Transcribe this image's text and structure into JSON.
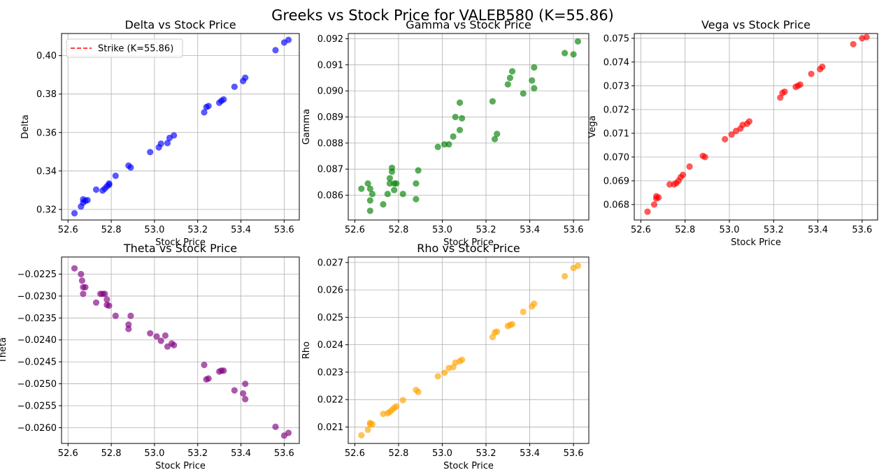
{
  "figure": {
    "title": "Greeks vs Stock Price for VALEB580 (K=55.86)"
  },
  "chart_data": [
    {
      "id": "delta",
      "type": "scatter",
      "title": "Delta vs Stock Price",
      "xlabel": "Stock Price",
      "ylabel": "Delta",
      "xlim": [
        52.57,
        53.67
      ],
      "ylim": [
        0.3145,
        0.4115
      ],
      "xticks": [
        52.6,
        52.8,
        53.0,
        53.2,
        53.4,
        53.6
      ],
      "xtick_labels": [
        "52.6",
        "52.8",
        "53.0",
        "53.2",
        "53.4",
        "53.6"
      ],
      "yticks": [
        0.32,
        0.34,
        0.36,
        0.38,
        0.4
      ],
      "ytick_labels": [
        "0.32",
        "0.34",
        "0.36",
        "0.38",
        "0.40"
      ],
      "grid": true,
      "color": "#0000ff",
      "legend": {
        "position": "upper-left",
        "entries": [
          {
            "label": "Strike (K=55.86)",
            "style": "dashed",
            "color": "#ff0000"
          }
        ]
      },
      "x": [
        52.63,
        52.66,
        52.67,
        52.67,
        52.68,
        52.69,
        52.73,
        52.76,
        52.77,
        52.78,
        52.79,
        52.79,
        52.82,
        52.88,
        52.89,
        52.98,
        53.02,
        53.03,
        53.06,
        53.07,
        53.09,
        53.23,
        53.24,
        53.25,
        53.3,
        53.31,
        53.32,
        53.37,
        53.41,
        53.42,
        53.56,
        53.6,
        53.62
      ],
      "y": [
        0.318,
        0.3215,
        0.3235,
        0.3252,
        0.3245,
        0.3248,
        0.3303,
        0.3298,
        0.3308,
        0.332,
        0.3335,
        0.3328,
        0.3375,
        0.3428,
        0.3418,
        0.3498,
        0.3523,
        0.3542,
        0.3545,
        0.3572,
        0.3585,
        0.3705,
        0.3732,
        0.3738,
        0.3755,
        0.3765,
        0.3772,
        0.3838,
        0.3868,
        0.3885,
        0.4028,
        0.4068,
        0.4082
      ]
    },
    {
      "id": "gamma",
      "type": "scatter",
      "title": "Gamma vs Stock Price",
      "xlabel": "Stock Price",
      "ylabel": "Gamma",
      "xlim": [
        52.57,
        53.67
      ],
      "ylim": [
        0.08505,
        0.0922
      ],
      "xticks": [
        52.6,
        52.8,
        53.0,
        53.2,
        53.4,
        53.6
      ],
      "xtick_labels": [
        "52.6",
        "52.8",
        "53.0",
        "53.2",
        "53.4",
        "53.6"
      ],
      "yticks": [
        0.086,
        0.087,
        0.088,
        0.089,
        0.09,
        0.091,
        0.092
      ],
      "ytick_labels": [
        "0.086",
        "0.087",
        "0.088",
        "0.089",
        "0.090",
        "0.091",
        "0.092"
      ],
      "grid": true,
      "color": "#008000",
      "x": [
        52.63,
        52.66,
        52.67,
        52.67,
        52.67,
        52.68,
        52.73,
        52.75,
        52.76,
        52.76,
        52.77,
        52.77,
        52.78,
        52.78,
        52.79,
        52.82,
        52.88,
        52.88,
        52.89,
        52.98,
        53.01,
        53.03,
        53.05,
        53.06,
        53.08,
        53.08,
        53.09,
        53.23,
        53.24,
        53.25,
        53.3,
        53.31,
        53.32,
        53.37,
        53.41,
        53.42,
        53.42,
        53.56,
        53.6,
        53.62
      ],
      "y": [
        0.08625,
        0.08645,
        0.08625,
        0.0854,
        0.0858,
        0.08605,
        0.08565,
        0.08605,
        0.08645,
        0.08665,
        0.0869,
        0.08705,
        0.08645,
        0.0862,
        0.08645,
        0.08605,
        0.08585,
        0.08645,
        0.08695,
        0.08785,
        0.08795,
        0.08795,
        0.08825,
        0.089,
        0.0885,
        0.08955,
        0.08895,
        0.0896,
        0.08815,
        0.08835,
        0.09025,
        0.0905,
        0.09075,
        0.0899,
        0.0904,
        0.0901,
        0.0909,
        0.09145,
        0.0914,
        0.0919
      ]
    },
    {
      "id": "vega",
      "type": "scatter",
      "title": "Vega vs Stock Price",
      "xlabel": "Stock Price",
      "ylabel": "Vega",
      "xlim": [
        52.57,
        53.67
      ],
      "ylim": [
        0.06735,
        0.0752
      ],
      "xticks": [
        52.6,
        52.8,
        53.0,
        53.2,
        53.4,
        53.6
      ],
      "xtick_labels": [
        "52.6",
        "52.8",
        "53.0",
        "53.2",
        "53.4",
        "53.6"
      ],
      "yticks": [
        0.068,
        0.069,
        0.07,
        0.071,
        0.072,
        0.073,
        0.074,
        0.075
      ],
      "ytick_labels": [
        "0.068",
        "0.069",
        "0.070",
        "0.071",
        "0.072",
        "0.073",
        "0.074",
        "0.075"
      ],
      "grid": true,
      "color": "#ff0000",
      "x": [
        52.63,
        52.66,
        52.67,
        52.67,
        52.68,
        52.73,
        52.75,
        52.76,
        52.77,
        52.78,
        52.79,
        52.82,
        52.88,
        52.89,
        52.98,
        53.01,
        53.03,
        53.05,
        53.06,
        53.08,
        53.09,
        53.23,
        53.24,
        53.25,
        53.3,
        53.31,
        53.32,
        53.37,
        53.41,
        53.42,
        53.56,
        53.6,
        53.62
      ],
      "y": [
        0.0677,
        0.068,
        0.06825,
        0.06835,
        0.0683,
        0.06885,
        0.06885,
        0.0689,
        0.069,
        0.06915,
        0.06925,
        0.0696,
        0.07005,
        0.07,
        0.07075,
        0.07095,
        0.0711,
        0.0712,
        0.07135,
        0.0714,
        0.0715,
        0.0725,
        0.0727,
        0.07275,
        0.07295,
        0.073,
        0.07305,
        0.0735,
        0.0737,
        0.0738,
        0.07475,
        0.075,
        0.07505
      ]
    },
    {
      "id": "theta",
      "type": "scatter",
      "title": "Theta vs Stock Price",
      "xlabel": "Stock Price",
      "ylabel": "Theta",
      "xlim": [
        52.57,
        53.67
      ],
      "ylim": [
        -0.02636,
        -0.02211
      ],
      "xticks": [
        52.6,
        52.8,
        53.0,
        53.2,
        53.4,
        53.6
      ],
      "xtick_labels": [
        "52.6",
        "52.8",
        "53.0",
        "53.2",
        "53.4",
        "53.6"
      ],
      "yticks": [
        -0.026,
        -0.0255,
        -0.025,
        -0.0245,
        -0.024,
        -0.0235,
        -0.023,
        -0.0225
      ],
      "ytick_labels": [
        "−0.0260",
        "−0.0255",
        "−0.0250",
        "−0.0245",
        "−0.0240",
        "−0.0235",
        "−0.0230",
        "−0.0225"
      ],
      "grid": true,
      "color": "#800080",
      "x": [
        52.63,
        52.66,
        52.665,
        52.67,
        52.67,
        52.68,
        52.73,
        52.75,
        52.76,
        52.77,
        52.78,
        52.78,
        52.79,
        52.82,
        52.88,
        52.88,
        52.89,
        52.98,
        53.01,
        53.03,
        53.05,
        53.06,
        53.08,
        53.09,
        53.23,
        53.24,
        53.25,
        53.3,
        53.31,
        53.32,
        53.37,
        53.41,
        53.42,
        53.42,
        53.56,
        53.6,
        53.62
      ],
      "y": [
        -0.02237,
        -0.0225,
        -0.02265,
        -0.0228,
        -0.02295,
        -0.0228,
        -0.02315,
        -0.02295,
        -0.02295,
        -0.02295,
        -0.02308,
        -0.0232,
        -0.02322,
        -0.02345,
        -0.02365,
        -0.02375,
        -0.02345,
        -0.02385,
        -0.02392,
        -0.02402,
        -0.0239,
        -0.02415,
        -0.02408,
        -0.02412,
        -0.02457,
        -0.0249,
        -0.02488,
        -0.02472,
        -0.0247,
        -0.0247,
        -0.02515,
        -0.02522,
        -0.025,
        -0.02535,
        -0.02598,
        -0.02618,
        -0.02612
      ]
    },
    {
      "id": "rho",
      "type": "scatter",
      "title": "Rho vs Stock Price",
      "xlabel": "Stock Price",
      "ylabel": "Rho",
      "xlim": [
        52.57,
        53.67
      ],
      "ylim": [
        0.0204,
        0.0272
      ],
      "xticks": [
        52.6,
        52.8,
        53.0,
        53.2,
        53.4,
        53.6
      ],
      "xtick_labels": [
        "52.6",
        "52.8",
        "53.0",
        "53.2",
        "53.4",
        "53.6"
      ],
      "yticks": [
        0.021,
        0.022,
        0.023,
        0.024,
        0.025,
        0.026,
        0.027
      ],
      "ytick_labels": [
        "0.021",
        "0.022",
        "0.023",
        "0.024",
        "0.025",
        "0.026",
        "0.027"
      ],
      "grid": true,
      "color": "#ffa500",
      "x": [
        52.63,
        52.66,
        52.67,
        52.67,
        52.68,
        52.73,
        52.75,
        52.76,
        52.77,
        52.78,
        52.79,
        52.82,
        52.88,
        52.89,
        52.98,
        53.01,
        53.03,
        53.05,
        53.06,
        53.08,
        53.09,
        53.23,
        53.24,
        53.25,
        53.3,
        53.31,
        53.32,
        53.37,
        53.41,
        53.42,
        53.56,
        53.6,
        53.62
      ],
      "y": [
        0.0207,
        0.0209,
        0.0211,
        0.02115,
        0.0211,
        0.02148,
        0.0215,
        0.02155,
        0.02162,
        0.0217,
        0.02175,
        0.02198,
        0.02235,
        0.02228,
        0.02285,
        0.02298,
        0.02315,
        0.02318,
        0.02335,
        0.0234,
        0.02345,
        0.02428,
        0.02445,
        0.02448,
        0.02468,
        0.02472,
        0.02475,
        0.0252,
        0.0254,
        0.0255,
        0.0265,
        0.0268,
        0.02688
      ]
    }
  ]
}
